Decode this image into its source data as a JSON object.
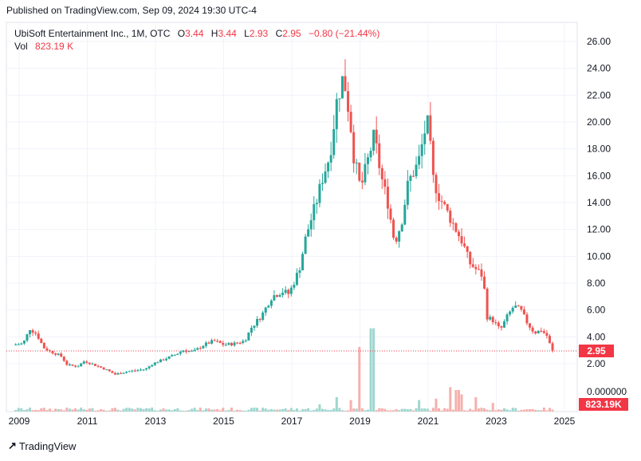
{
  "published": "Published on TradingView.com, Sep 09, 2024 19:30 UTC-4",
  "footer": {
    "brand": "TradingView"
  },
  "legend": {
    "symbol": "UbiSoft Entertainment Inc., 1M, OTC",
    "open_key": "O",
    "open": "3.44",
    "high_key": "H",
    "high": "3.44",
    "low_key": "L",
    "low": "2.93",
    "close_key": "C",
    "close": "2.95",
    "change": "−0.80 (−21.44%)",
    "vol_key": "Vol",
    "vol": "823.19 K"
  },
  "colors": {
    "up": "#26a69a",
    "down": "#ef5350",
    "up_vol": "#9fd6cf",
    "down_vol": "#f5b0ad",
    "badge": "#f23645",
    "grid": "#f0f3fa"
  },
  "chart_data": {
    "type": "candlestick",
    "title": "UbiSoft Entertainment Inc., 1M, OTC",
    "interval": "1M",
    "x_ticks": [
      "2009",
      "2011",
      "2013",
      "2015",
      "2017",
      "2019",
      "2021",
      "2023",
      "2025"
    ],
    "y_ticks": [
      "26.00",
      "24.00",
      "22.00",
      "20.00",
      "18.00",
      "16.00",
      "14.00",
      "12.00",
      "10.00",
      "8.00",
      "6.00",
      "4.00",
      "2.00"
    ],
    "ylim": [
      0,
      27.5
    ],
    "volume_axis_label": "0.000000",
    "last_price": "2.95",
    "last_volume": "823.19K",
    "grid": true,
    "price_path": [
      [
        2008.9,
        3.4
      ],
      [
        2009.2,
        3.5
      ],
      [
        2009.4,
        4.6
      ],
      [
        2009.6,
        4.2
      ],
      [
        2009.8,
        3.2
      ],
      [
        2010.0,
        2.9
      ],
      [
        2010.3,
        2.6
      ],
      [
        2010.5,
        1.9
      ],
      [
        2010.8,
        1.8
      ],
      [
        2011.0,
        2.2
      ],
      [
        2011.3,
        1.9
      ],
      [
        2011.6,
        1.6
      ],
      [
        2011.9,
        1.2
      ],
      [
        2012.2,
        1.4
      ],
      [
        2012.5,
        1.5
      ],
      [
        2012.8,
        1.6
      ],
      [
        2013.0,
        2.0
      ],
      [
        2013.3,
        2.3
      ],
      [
        2013.6,
        2.6
      ],
      [
        2013.9,
        3.0
      ],
      [
        2014.2,
        2.9
      ],
      [
        2014.5,
        3.4
      ],
      [
        2014.8,
        3.7
      ],
      [
        2015.1,
        3.4
      ],
      [
        2015.4,
        3.5
      ],
      [
        2015.7,
        3.7
      ],
      [
        2015.9,
        4.7
      ],
      [
        2016.2,
        5.6
      ],
      [
        2016.5,
        7.0
      ],
      [
        2016.8,
        7.4
      ],
      [
        2017.0,
        7.2
      ],
      [
        2017.3,
        9.0
      ],
      [
        2017.5,
        11.5
      ],
      [
        2017.8,
        14.0
      ],
      [
        2018.0,
        16.0
      ],
      [
        2018.2,
        17.5
      ],
      [
        2018.4,
        21.5
      ],
      [
        2018.6,
        23.5
      ],
      [
        2018.8,
        20.0
      ],
      [
        2018.9,
        17.5
      ],
      [
        2019.1,
        15.0
      ],
      [
        2019.3,
        17.0
      ],
      [
        2019.5,
        19.0
      ],
      [
        2019.7,
        16.0
      ],
      [
        2019.9,
        14.0
      ],
      [
        2020.1,
        11.0
      ],
      [
        2020.3,
        12.5
      ],
      [
        2020.5,
        15.5
      ],
      [
        2020.8,
        17.0
      ],
      [
        2021.0,
        19.5
      ],
      [
        2021.1,
        20.0
      ],
      [
        2021.2,
        16.0
      ],
      [
        2021.4,
        14.5
      ],
      [
        2021.6,
        13.5
      ],
      [
        2021.9,
        12.0
      ],
      [
        2022.1,
        11.0
      ],
      [
        2022.3,
        9.5
      ],
      [
        2022.5,
        9.0
      ],
      [
        2022.7,
        8.5
      ],
      [
        2022.8,
        5.5
      ],
      [
        2023.0,
        5.2
      ],
      [
        2023.2,
        4.5
      ],
      [
        2023.4,
        5.5
      ],
      [
        2023.6,
        6.3
      ],
      [
        2023.8,
        6.0
      ],
      [
        2024.0,
        5.0
      ],
      [
        2024.2,
        4.3
      ],
      [
        2024.4,
        4.5
      ],
      [
        2024.6,
        4.0
      ],
      [
        2024.7,
        2.95
      ]
    ],
    "volume_spikes": [
      [
        2019.0,
        0.45,
        "down"
      ],
      [
        2019.35,
        0.58,
        "up"
      ],
      [
        2021.65,
        0.17,
        "down"
      ],
      [
        2021.85,
        0.15,
        "down"
      ],
      [
        2017.8,
        0.05,
        "up"
      ],
      [
        2018.3,
        0.1,
        "up"
      ],
      [
        2018.7,
        0.08,
        "up"
      ],
      [
        2020.7,
        0.08,
        "up"
      ],
      [
        2021.2,
        0.09,
        "down"
      ],
      [
        2022.0,
        0.12,
        "down"
      ],
      [
        2022.4,
        0.1,
        "down"
      ],
      [
        2022.9,
        0.06,
        "down"
      ]
    ]
  }
}
